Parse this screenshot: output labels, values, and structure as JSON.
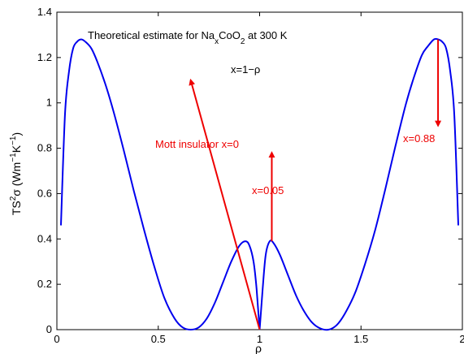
{
  "chart_data": {
    "type": "line",
    "xlabel": "ρ",
    "ylabel": {
      "t1": "TS",
      "s1": "2",
      "t2": "σ (Wm",
      "s2": "−1",
      "t3": "K",
      "s3": "−1",
      "t4": ")"
    },
    "xlim": [
      0,
      2
    ],
    "ylim": [
      0,
      1.4
    ],
    "xticks": [
      0,
      0.5,
      1,
      1.5,
      2
    ],
    "xtick_labels": [
      "0",
      "0.5",
      "1",
      "1.5",
      "2"
    ],
    "yticks": [
      0,
      0.2,
      0.4,
      0.6,
      0.8,
      1,
      1.2,
      1.4
    ],
    "ytick_labels": [
      "0",
      "0.2",
      "0.4",
      "0.6",
      "0.8",
      "1",
      "1.2",
      "1.4"
    ],
    "grid": false,
    "series_color": "#0000ee",
    "annotation_color": "#ee0000",
    "x": [
      0.02,
      0.04,
      0.06,
      0.08,
      0.1,
      0.12,
      0.14,
      0.17,
      0.2,
      0.24,
      0.28,
      0.33,
      0.38,
      0.43,
      0.48,
      0.53,
      0.58,
      0.62,
      0.66,
      0.7,
      0.74,
      0.78,
      0.82,
      0.86,
      0.9,
      0.93,
      0.95,
      0.97,
      0.985,
      1.0,
      1.015,
      1.03,
      1.05,
      1.07,
      1.1,
      1.14,
      1.18,
      1.22,
      1.26,
      1.3,
      1.34,
      1.38,
      1.42,
      1.47,
      1.52,
      1.57,
      1.62,
      1.67,
      1.72,
      1.76,
      1.8,
      1.83,
      1.86,
      1.88,
      1.9,
      1.92,
      1.94,
      1.96,
      1.98
    ],
    "y": [
      0.46,
      0.95,
      1.14,
      1.24,
      1.27,
      1.28,
      1.27,
      1.24,
      1.18,
      1.08,
      0.96,
      0.79,
      0.61,
      0.44,
      0.28,
      0.14,
      0.05,
      0.01,
      0.0,
      0.01,
      0.05,
      0.12,
      0.21,
      0.3,
      0.37,
      0.39,
      0.37,
      0.3,
      0.18,
      0.0,
      0.18,
      0.33,
      0.39,
      0.38,
      0.33,
      0.24,
      0.15,
      0.08,
      0.03,
      0.005,
      0.0,
      0.02,
      0.07,
      0.16,
      0.29,
      0.44,
      0.62,
      0.81,
      0.99,
      1.11,
      1.21,
      1.25,
      1.28,
      1.28,
      1.27,
      1.24,
      1.14,
      0.95,
      0.46
    ],
    "annotations": {
      "title_pre": "Theoretical estimate for Na",
      "title_sub_x": "x",
      "title_mid": "CoO",
      "title_sub_2": "2",
      "title_post": " at 300 K",
      "relation": "x=1−ρ",
      "mott": "Mott insulator x=0",
      "x005": "x=0.05",
      "x088": "x=0.88"
    },
    "arrows": [
      {
        "from": [
          1.0,
          0.0
        ],
        "to": [
          0.66,
          1.1
        ]
      },
      {
        "from": [
          1.06,
          0.39
        ],
        "to": [
          1.06,
          0.78
        ]
      },
      {
        "from": [
          1.88,
          1.28
        ],
        "to": [
          1.88,
          0.9
        ]
      }
    ]
  }
}
